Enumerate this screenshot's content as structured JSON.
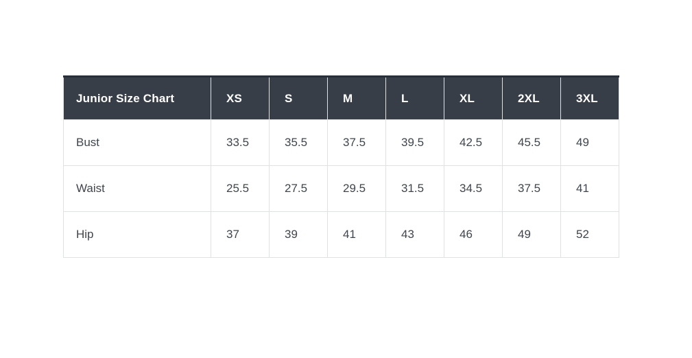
{
  "chart_data": {
    "type": "table",
    "title": "Junior Size Chart",
    "columns": [
      "Junior Size Chart",
      "XS",
      "S",
      "M",
      "L",
      "XL",
      "2XL",
      "3XL"
    ],
    "rows": [
      [
        "Bust",
        "33.5",
        "35.5",
        "37.5",
        "39.5",
        "42.5",
        "45.5",
        "49"
      ],
      [
        "Waist",
        "25.5",
        "27.5",
        "29.5",
        "31.5",
        "34.5",
        "37.5",
        "41"
      ],
      [
        "Hip",
        "37",
        "39",
        "41",
        "43",
        "46",
        "49",
        "52"
      ]
    ],
    "layout": {
      "header_row_style": "dark",
      "grid": true
    }
  },
  "colors": {
    "header_bg": "#373e47",
    "header_text": "#ffffff",
    "header_top_border": "#2a3039",
    "body_text": "#3f454c",
    "cell_border": "#dfe1e3",
    "cell_bg": "#ffffff",
    "page_bg": "#ffffff"
  }
}
